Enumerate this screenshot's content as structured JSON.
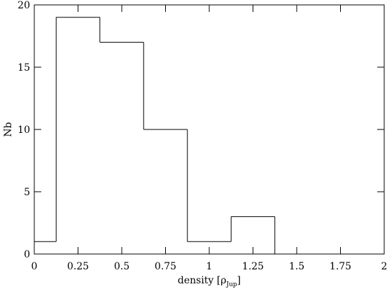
{
  "chart_data": {
    "type": "histogram",
    "bins": [
      0,
      0.125,
      0.375,
      0.625,
      0.875,
      1.125,
      1.375,
      1.625,
      1.875,
      2
    ],
    "values": [
      1,
      19,
      17,
      10,
      1,
      3,
      0,
      0,
      0
    ],
    "color": "#000000",
    "xlim": [
      0,
      2
    ],
    "xticks": [
      0,
      0.25,
      0.5,
      0.75,
      1,
      1.25,
      1.5,
      1.75,
      2
    ],
    "ylim": [
      0,
      20
    ],
    "yticks": [
      0,
      5,
      10,
      15,
      20
    ],
    "xlabel_parts": [
      "density [ρ",
      "Jup",
      "]"
    ],
    "ylabel": "Nb"
  }
}
